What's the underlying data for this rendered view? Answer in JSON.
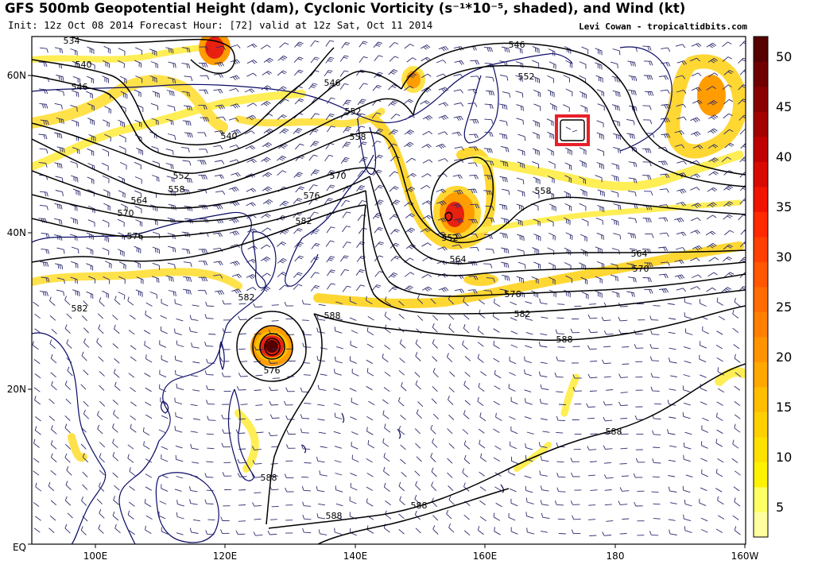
{
  "header": {
    "title": "GFS 500mb Geopotential Height (dam), Cyclonic Vorticity (s⁻¹*10⁻⁵, shaded), and Wind (kt)",
    "init_line": "Init: 12z Oct 08 2014 Forecast Hour: [72] valid at 12z Sat, Oct 11 2014",
    "credit": "Levi Cowan - tropicaltidbits.com"
  },
  "axes": {
    "lon_labels": [
      "100E",
      "120E",
      "140E",
      "160E",
      "180",
      "160W"
    ],
    "lat_labels": [
      "60N",
      "40N",
      "20N",
      "EQ"
    ]
  },
  "colorbar": {
    "ticks": [
      "5",
      "10",
      "15",
      "20",
      "25",
      "30",
      "35",
      "40",
      "45",
      "50"
    ],
    "colors": [
      "#ffffa0",
      "#ffff66",
      "#fff200",
      "#ffe100",
      "#ffd000",
      "#ffbe00",
      "#ffa800",
      "#ff9400",
      "#ff8000",
      "#ff6c00",
      "#ff5800",
      "#ff4000",
      "#ff2a00",
      "#f01400",
      "#d80a00",
      "#c00000",
      "#a40000",
      "#8a0000",
      "#700000",
      "#560000"
    ]
  },
  "contour_labels": [
    "534",
    "540",
    "546",
    "540",
    "552",
    "558",
    "564",
    "570",
    "576",
    "582",
    "546",
    "552",
    "558",
    "570",
    "576",
    "582",
    "546",
    "552",
    "558",
    "564",
    "570",
    "552",
    "564",
    "576",
    "582",
    "588",
    "588",
    "576",
    "582",
    "588",
    "588",
    "588",
    "588"
  ],
  "highlight_box": {
    "color": "#e8202a"
  },
  "colors": {
    "coast": "#0a0a66",
    "contour": "#000000",
    "barb": "#2b2b6e",
    "vort_light": "#ffee55",
    "vort_mid": "#ff9c00",
    "vort_high": "#e8200f",
    "vort_core": "#550000"
  }
}
